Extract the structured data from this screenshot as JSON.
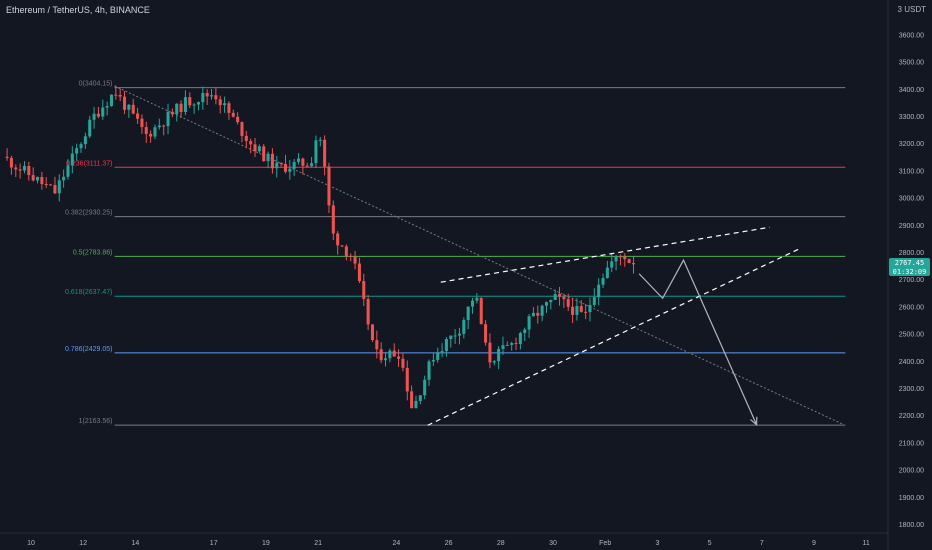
{
  "header": {
    "title": "Ethereum / TetherUS, 4h, BINANCE",
    "currency": "3 USDT"
  },
  "last_price": {
    "price": "2767.45",
    "countdown": "01:32:09"
  },
  "colors": {
    "background": "#131722",
    "up": "#26a69a",
    "down": "#ef5350",
    "axis_text": "#b2b5be",
    "fib_line": "#787b86",
    "fib_red": "#f23645",
    "fib_green": "#4caf50",
    "fib_teal": "#089981",
    "fib_blue": "#5b9cf6",
    "pattern_lines": "#ffffff",
    "projection": "#b2b5be"
  },
  "chart_data": {
    "type": "candlestick",
    "symbol": "ETHUSDT",
    "timeframe": "4h",
    "exchange": "BINANCE",
    "y_axis": {
      "ticks": [
        1800,
        1900,
        2000,
        2100,
        2200,
        2300,
        2400,
        2500,
        2600,
        2700,
        2800,
        2900,
        3000,
        3100,
        3200,
        3300,
        3400,
        3500,
        3600
      ],
      "labels": [
        "1800.00",
        "1900.00",
        "2000.00",
        "2100.00",
        "2200.00",
        "2300.00",
        "2400.00",
        "2500.00",
        "2600.00",
        "2700.00",
        "2800.00",
        "2900.00",
        "3000.00",
        "3100.00",
        "3200.00",
        "3300.00",
        "3400.00",
        "3500.00",
        "3600.00"
      ],
      "range": [
        1780,
        3720
      ]
    },
    "x_axis": {
      "labels": [
        {
          "day": 10,
          "label": "10"
        },
        {
          "day": 12,
          "label": "12"
        },
        {
          "day": 14,
          "label": "14"
        },
        {
          "day": 17,
          "label": "17"
        },
        {
          "day": 19,
          "label": "19"
        },
        {
          "day": 21,
          "label": "21"
        },
        {
          "day": 24,
          "label": "24"
        },
        {
          "day": 26,
          "label": "26"
        },
        {
          "day": 28,
          "label": "28"
        },
        {
          "day": 30,
          "label": "30"
        },
        {
          "day": 32,
          "label": "Feb"
        },
        {
          "day": 34,
          "label": "3"
        },
        {
          "day": 36,
          "label": "5"
        },
        {
          "day": 38,
          "label": "7"
        },
        {
          "day": 40,
          "label": "9"
        },
        {
          "day": 42,
          "label": "11"
        }
      ]
    },
    "fib_levels": [
      {
        "ratio": "0",
        "price": 3404.15,
        "label": "0(3404.15)",
        "color": "#787b86"
      },
      {
        "ratio": "0.236",
        "price": 3111.37,
        "label": "0.236(3111.37)",
        "color": "#f23645"
      },
      {
        "ratio": "0.382",
        "price": 2930.25,
        "label": "0.382(2930.25)",
        "color": "#787b86"
      },
      {
        "ratio": "0.5",
        "price": 2783.86,
        "label": "0.5(2783.86)",
        "color": "#4caf50"
      },
      {
        "ratio": "0.618",
        "price": 2637.47,
        "label": "0.618(2637.47)",
        "color": "#089981"
      },
      {
        "ratio": "0.786",
        "price": 2429.05,
        "label": "0.786(2429.05)",
        "color": "#5b9cf6"
      },
      {
        "ratio": "1",
        "price": 2163.56,
        "label": "1(2163.56)",
        "color": "#787b86"
      }
    ],
    "key_prices": [
      {
        "day": 9,
        "price": 3150
      },
      {
        "day": 11,
        "price": 3020
      },
      {
        "day": 12.5,
        "price": 3300
      },
      {
        "day": 13.3,
        "price": 3390
      },
      {
        "day": 14.5,
        "price": 3230
      },
      {
        "day": 16,
        "price": 3350
      },
      {
        "day": 17.1,
        "price": 3385
      },
      {
        "day": 18.5,
        "price": 3200
      },
      {
        "day": 19.5,
        "price": 3110
      },
      {
        "day": 20.8,
        "price": 3130
      },
      {
        "day": 21.1,
        "price": 3260
      },
      {
        "day": 21.4,
        "price": 3060
      },
      {
        "day": 21.6,
        "price": 2870
      },
      {
        "day": 22.4,
        "price": 2780
      },
      {
        "day": 23.3,
        "price": 2420
      },
      {
        "day": 24.2,
        "price": 2430
      },
      {
        "day": 24.7,
        "price": 2220
      },
      {
        "day": 25.5,
        "price": 2420
      },
      {
        "day": 26.5,
        "price": 2520
      },
      {
        "day": 27.1,
        "price": 2650
      },
      {
        "day": 27.6,
        "price": 2400
      },
      {
        "day": 28.5,
        "price": 2460
      },
      {
        "day": 29.3,
        "price": 2560
      },
      {
        "day": 30.2,
        "price": 2630
      },
      {
        "day": 31.3,
        "price": 2560
      },
      {
        "day": 31.8,
        "price": 2690
      },
      {
        "day": 32.3,
        "price": 2760
      },
      {
        "day": 32.8,
        "price": 2790
      },
      {
        "day": 33.0,
        "price": 2767.45
      }
    ],
    "pattern": {
      "upper_trendline": [
        {
          "day": 25.7,
          "price": 2689
        },
        {
          "day": 38.3,
          "price": 2891
        }
      ],
      "lower_trendline": [
        {
          "day": 25.2,
          "price": 2163
        },
        {
          "day": 39.4,
          "price": 2810
        }
      ],
      "descending_line": [
        {
          "day": 13.2,
          "price": 3410
        },
        {
          "day": 41.1,
          "price": 2167
        }
      ],
      "projection_path": [
        {
          "day": 33.3,
          "price": 2720
        },
        {
          "day": 34.2,
          "price": 2630
        },
        {
          "day": 35.0,
          "price": 2770
        },
        {
          "day": 37.8,
          "price": 2165
        }
      ]
    }
  }
}
